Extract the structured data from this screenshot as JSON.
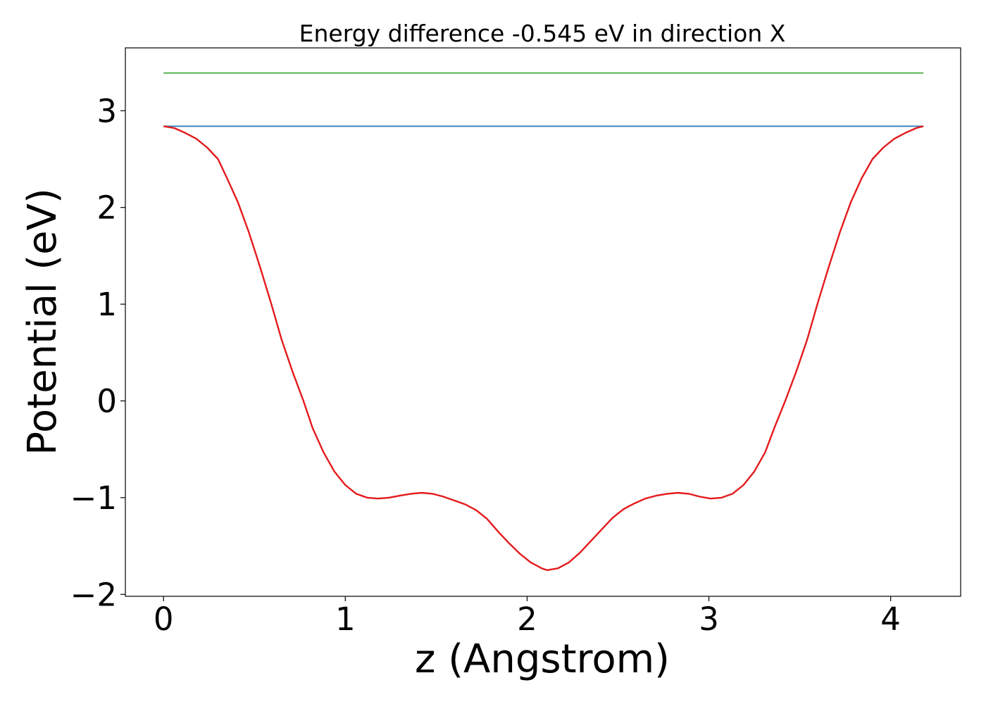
{
  "chart_data": {
    "type": "line",
    "title": "Energy difference -0.545 eV in direction X",
    "xlabel": "z (Angstrom)",
    "ylabel": "Potential (eV)",
    "xlim": [
      -0.21,
      4.385
    ],
    "ylim": [
      -2.02,
      3.65
    ],
    "x_ticks": [
      0,
      1,
      2,
      3,
      4
    ],
    "y_ticks": [
      -2,
      -1,
      0,
      1,
      2,
      3
    ],
    "x_tick_labels": [
      "0",
      "1",
      "2",
      "3",
      "4"
    ],
    "y_tick_labels": [
      "−2",
      "−1",
      "0",
      "1",
      "2",
      "3"
    ],
    "grid": false,
    "legend": "none",
    "series": [
      {
        "color": "#e41a1c",
        "x": [
          0,
          0.06,
          0.12,
          0.18,
          0.24,
          0.3,
          0.35,
          0.41,
          0.47,
          0.53,
          0.59,
          0.65,
          0.71,
          0.77,
          0.82,
          0.88,
          0.94,
          1.0,
          1.06,
          1.12,
          1.18,
          1.24,
          1.3,
          1.36,
          1.42,
          1.48,
          1.54,
          1.6,
          1.66,
          1.72,
          1.78,
          1.84,
          1.9,
          1.96,
          2.02,
          2.08,
          2.11,
          2.17,
          2.23,
          2.29,
          2.35,
          2.41,
          2.47,
          2.53,
          2.59,
          2.65,
          2.71,
          2.77,
          2.83,
          2.89,
          2.95,
          3.01,
          3.07,
          3.13,
          3.19,
          3.25,
          3.31,
          3.36,
          3.42,
          3.48,
          3.54,
          3.6,
          3.66,
          3.72,
          3.78,
          3.84,
          3.9,
          3.96,
          4.02,
          4.08,
          4.14,
          4.18
        ],
        "y": [
          2.84,
          2.82,
          2.77,
          2.71,
          2.62,
          2.5,
          2.3,
          2.05,
          1.74,
          1.39,
          1.02,
          0.63,
          0.3,
          0.0,
          -0.28,
          -0.53,
          -0.73,
          -0.87,
          -0.96,
          -1.0,
          -1.01,
          -1.0,
          -0.98,
          -0.96,
          -0.95,
          -0.96,
          -0.99,
          -1.03,
          -1.07,
          -1.13,
          -1.22,
          -1.35,
          -1.47,
          -1.58,
          -1.67,
          -1.73,
          -1.75,
          -1.73,
          -1.67,
          -1.57,
          -1.45,
          -1.33,
          -1.21,
          -1.12,
          -1.06,
          -1.01,
          -0.98,
          -0.96,
          -0.95,
          -0.96,
          -0.99,
          -1.01,
          -1.0,
          -0.96,
          -0.87,
          -0.73,
          -0.53,
          -0.28,
          0.0,
          0.3,
          0.63,
          1.02,
          1.39,
          1.74,
          2.05,
          2.3,
          2.5,
          2.62,
          2.71,
          2.77,
          2.82,
          2.84
        ]
      },
      {
        "color": "#377eb8",
        "x": [
          0,
          4.18
        ],
        "y": [
          2.84,
          2.84
        ]
      },
      {
        "color": "#4daf4a",
        "x": [
          0,
          4.18
        ],
        "y": [
          3.39,
          3.39
        ]
      }
    ]
  }
}
